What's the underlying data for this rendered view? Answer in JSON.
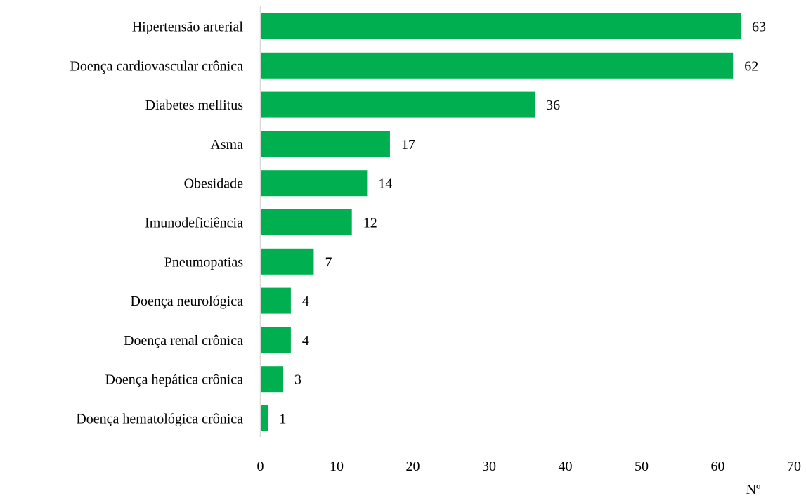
{
  "chart_data": {
    "type": "bar",
    "orientation": "horizontal",
    "title": "",
    "xlabel": "Nº",
    "ylabel": "",
    "categories": [
      "Hipertensão arterial",
      "Doença cardiovascular crônica",
      "Diabetes mellitus",
      "Asma",
      "Obesidade",
      "Imunodeficiência",
      "Pneumopatias",
      "Doença neurológica",
      "Doença renal crônica",
      "Doença hepática crônica",
      "Doença hematológica crônica"
    ],
    "values": [
      63,
      62,
      36,
      17,
      14,
      12,
      7,
      4,
      4,
      3,
      1
    ],
    "value_labels": [
      "63",
      "62",
      "36",
      "17",
      "14",
      "12",
      "7",
      "4",
      "4",
      "3",
      "1"
    ],
    "xlim": [
      0,
      70
    ],
    "xticks": [
      "0",
      "10",
      "20",
      "30",
      "40",
      "50",
      "60",
      "70"
    ],
    "grid": false,
    "legend": "none",
    "bar_color": "#00B050",
    "axis_color": "#D9D9D9"
  }
}
